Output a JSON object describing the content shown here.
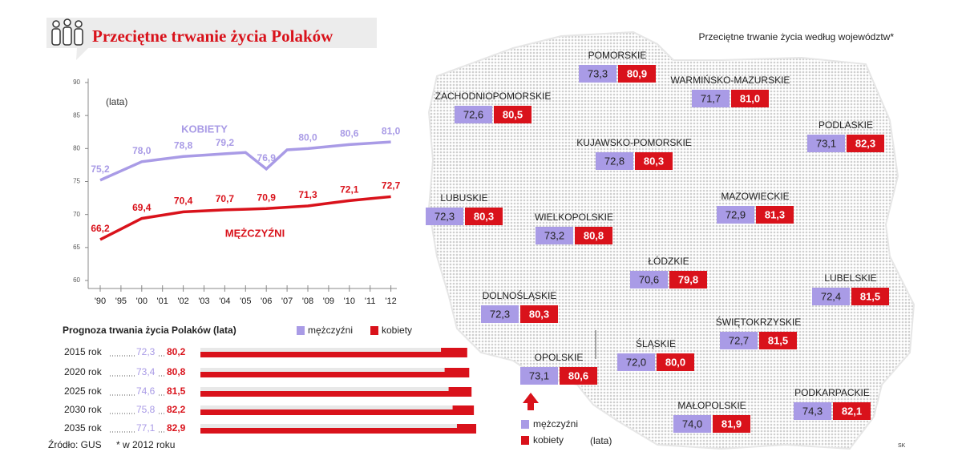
{
  "title": "Przeciętne trwanie życia Polaków",
  "chart_data": [
    {
      "type": "line",
      "y_label": "(lata)",
      "categories": [
        "'90",
        "'95",
        "'00",
        "'01",
        "'02",
        "'03",
        "'04",
        "'05",
        "'06",
        "'07",
        "'08",
        "'09",
        "'10",
        "'11",
        "'12"
      ],
      "ylim": [
        60,
        90
      ],
      "yticks": [
        60,
        65,
        70,
        75,
        80,
        85,
        90
      ],
      "series": [
        {
          "name": "KOBIETY",
          "color": "#a99be6",
          "values": [
            75.2,
            76.6,
            78.0,
            78.4,
            78.8,
            79.0,
            79.2,
            79.4,
            76.9,
            79.8,
            80.0,
            80.3,
            80.6,
            80.8,
            81.0
          ],
          "value_labels": [
            "75,2",
            null,
            "78,0",
            null,
            "78,8",
            null,
            "79,2",
            null,
            "76,9",
            null,
            "80,0",
            null,
            "80,6",
            null,
            "81,0"
          ]
        },
        {
          "name": "MĘŻCZYŹNI",
          "color": "#d9121b",
          "values": [
            66.2,
            67.8,
            69.4,
            69.9,
            70.4,
            70.55,
            70.7,
            70.8,
            70.9,
            71.1,
            71.3,
            71.7,
            72.1,
            72.4,
            72.7
          ],
          "value_labels": [
            "66,2",
            null,
            "69,4",
            null,
            "70,4",
            null,
            "70,7",
            null,
            "70,9",
            null,
            "71,3",
            null,
            "72,1",
            null,
            "72,7"
          ]
        }
      ]
    },
    {
      "type": "bar",
      "orientation": "horizontal",
      "title": "Prognoza trwania życia Polaków (lata)",
      "categories": [
        "2015 rok",
        "2020 rok",
        "2025 rok",
        "2030 rok",
        "2035 rok"
      ],
      "series": [
        {
          "name": "mężczyźni",
          "color": "#a99be6",
          "values": [
            72.3,
            73.4,
            74.6,
            75.8,
            77.1
          ],
          "value_labels": [
            "72,3",
            "73,4",
            "74,6",
            "75,8",
            "77,1"
          ]
        },
        {
          "name": "kobiety",
          "color": "#d9121b",
          "values": [
            80.2,
            80.8,
            81.5,
            82.2,
            82.9
          ],
          "value_labels": [
            "80,2",
            "80,8",
            "81,5",
            "82,2",
            "82,9"
          ]
        }
      ]
    }
  ],
  "map": {
    "title": "Przeciętne trwanie życia według województw*",
    "legend": [
      "mężczyźni",
      "kobiety"
    ],
    "unit": "(lata)",
    "colors": [
      "#a99be6",
      "#d9121b"
    ],
    "regions": [
      {
        "name": "POMORSKIE",
        "values": [
          73.3,
          80.9
        ],
        "value_labels": [
          "73,3",
          "80,9"
        ]
      },
      {
        "name": "ZACHODNIOPOMORSKIE",
        "values": [
          72.6,
          80.5
        ],
        "value_labels": [
          "72,6",
          "80,5"
        ]
      },
      {
        "name": "WARMIŃSKO-MAZURSKIE",
        "values": [
          71.7,
          81.0
        ],
        "value_labels": [
          "71,7",
          "81,0"
        ]
      },
      {
        "name": "PODLASKIE",
        "values": [
          73.1,
          82.3
        ],
        "value_labels": [
          "73,1",
          "82,3"
        ]
      },
      {
        "name": "KUJAWSKO-POMORSKIE",
        "values": [
          72.8,
          80.3
        ],
        "value_labels": [
          "72,8",
          "80,3"
        ]
      },
      {
        "name": "LUBUSKIE",
        "values": [
          72.3,
          80.3
        ],
        "value_labels": [
          "72,3",
          "80,3"
        ]
      },
      {
        "name": "MAZOWIECKIE",
        "values": [
          72.9,
          81.3
        ],
        "value_labels": [
          "72,9",
          "81,3"
        ]
      },
      {
        "name": "WIELKOPOLSKIE",
        "values": [
          73.2,
          80.8
        ],
        "value_labels": [
          "73,2",
          "80,8"
        ]
      },
      {
        "name": "ŁÓDZKIE",
        "values": [
          70.6,
          79.8
        ],
        "value_labels": [
          "70,6",
          "79,8"
        ]
      },
      {
        "name": "LUBELSKIE",
        "values": [
          72.4,
          81.5
        ],
        "value_labels": [
          "72,4",
          "81,5"
        ]
      },
      {
        "name": "DOLNOŚLĄSKIE",
        "values": [
          72.3,
          80.3
        ],
        "value_labels": [
          "72,3",
          "80,3"
        ]
      },
      {
        "name": "ŚWIĘTOKRZYSKIE",
        "values": [
          72.7,
          81.5
        ],
        "value_labels": [
          "72,7",
          "81,5"
        ]
      },
      {
        "name": "ŚLĄSKIE",
        "values": [
          72.0,
          80.0
        ],
        "value_labels": [
          "72,0",
          "80,0"
        ]
      },
      {
        "name": "OPOLSKIE",
        "values": [
          73.1,
          80.6
        ],
        "value_labels": [
          "73,1",
          "80,6"
        ]
      },
      {
        "name": "MAŁOPOLSKIE",
        "values": [
          74.0,
          81.9
        ],
        "value_labels": [
          "74,0",
          "81,9"
        ]
      },
      {
        "name": "PODKARPACKIE",
        "values": [
          74.3,
          82.1
        ],
        "value_labels": [
          "74,3",
          "82,1"
        ]
      }
    ]
  },
  "source": "Źródło: GUS",
  "note": "* w 2012 roku",
  "credit": "SK"
}
